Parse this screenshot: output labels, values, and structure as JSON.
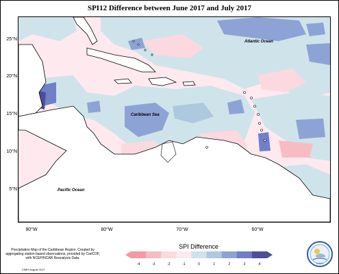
{
  "title": "SPI12 Difference between June 2017 and July 2017",
  "y_ticks": [
    "25°N",
    "20°N",
    "15°N",
    "10°N",
    "5°N"
  ],
  "x_ticks": [
    "90°W",
    "80°W",
    "70°W",
    "60°W"
  ],
  "labels": {
    "atlantic": "Atlantic Ocean",
    "caribbean": "Caribbean Sea",
    "pacific": "Pacific Ocean"
  },
  "note": "Precipitation Map of the Caribbean Region. Created by aggregating station based observations, provided by CariCOF, with NCEP/NCAR Reanalysis Data.",
  "credit": "CIMH August 2017",
  "legend": {
    "title": "SPI Difference",
    "ticks": [
      "-4",
      "-3",
      "-2",
      "-1",
      "0",
      "1",
      "2",
      "3",
      "4"
    ],
    "colors": [
      "#f4999f",
      "#f7bcc3",
      "#fbd9df",
      "#fdeaee",
      "#cfe3ea",
      "#aec8de",
      "#8ea3d5",
      "#6f7fc8",
      "#4a5096"
    ]
  },
  "logo_text": "CIMH"
}
